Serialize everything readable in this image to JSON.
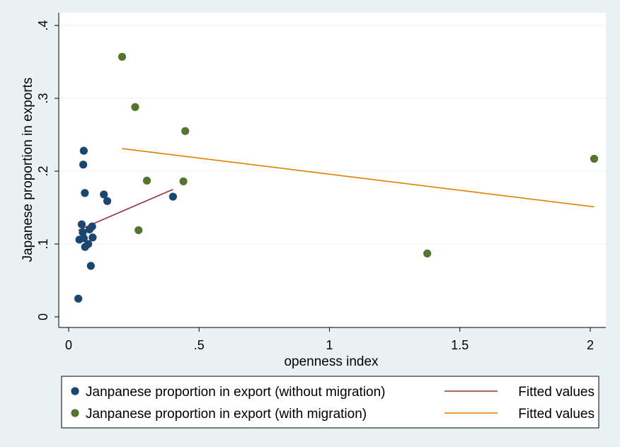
{
  "chart_data": {
    "type": "scatter",
    "xlabel": "openness index",
    "ylabel": "Japanese proportion in exports",
    "xlim": [
      0,
      2.05
    ],
    "ylim": [
      0,
      0.4
    ],
    "x_ticks": [
      0,
      0.5,
      1,
      1.5,
      2
    ],
    "x_tick_labels": [
      "0",
      ".5",
      "1",
      "1.5",
      "2"
    ],
    "y_ticks": [
      0,
      0.1,
      0.2,
      0.3,
      0.4
    ],
    "y_tick_labels": [
      "0",
      ".1",
      ".2",
      ".3",
      ".4"
    ],
    "grid": "horizontal",
    "legend_position": "bottom",
    "series": [
      {
        "name": "Janpanese proportion in export (without migration)",
        "kind": "scatter",
        "color": "#1a476f",
        "points": [
          [
            0.037,
            0.025
          ],
          [
            0.041,
            0.106
          ],
          [
            0.05,
            0.127
          ],
          [
            0.054,
            0.116
          ],
          [
            0.056,
            0.209
          ],
          [
            0.058,
            0.228
          ],
          [
            0.058,
            0.108
          ],
          [
            0.062,
            0.17
          ],
          [
            0.063,
            0.096
          ],
          [
            0.075,
            0.1
          ],
          [
            0.08,
            0.12
          ],
          [
            0.085,
            0.07
          ],
          [
            0.09,
            0.124
          ],
          [
            0.092,
            0.109
          ],
          [
            0.135,
            0.168
          ],
          [
            0.148,
            0.159
          ],
          [
            0.4,
            0.165
          ]
        ]
      },
      {
        "name": "Fitted values",
        "kind": "line",
        "color": "#90353b",
        "points": [
          [
            0.037,
            0.119
          ],
          [
            0.4,
            0.175
          ]
        ]
      },
      {
        "name": "Janpanese proportion in export (with migration)",
        "kind": "scatter",
        "color": "#55752f",
        "points": [
          [
            0.205,
            0.357
          ],
          [
            0.255,
            0.288
          ],
          [
            0.268,
            0.119
          ],
          [
            0.3,
            0.187
          ],
          [
            0.44,
            0.186
          ],
          [
            0.447,
            0.255
          ],
          [
            1.375,
            0.087
          ],
          [
            2.015,
            0.217
          ]
        ]
      },
      {
        "name": "Fitted values",
        "kind": "line",
        "color": "#e37e00",
        "points": [
          [
            0.205,
            0.231
          ],
          [
            2.015,
            0.151
          ]
        ]
      }
    ],
    "legend": [
      {
        "label": "Janpanese proportion in export (without migration)",
        "marker": "dot",
        "color": "#1a476f"
      },
      {
        "label": "Fitted values",
        "marker": "line",
        "color": "#90353b"
      },
      {
        "label": "Janpanese proportion in export (with migration)",
        "marker": "dot",
        "color": "#55752f"
      },
      {
        "label": "Fitted values",
        "marker": "line",
        "color": "#e37e00"
      }
    ]
  }
}
